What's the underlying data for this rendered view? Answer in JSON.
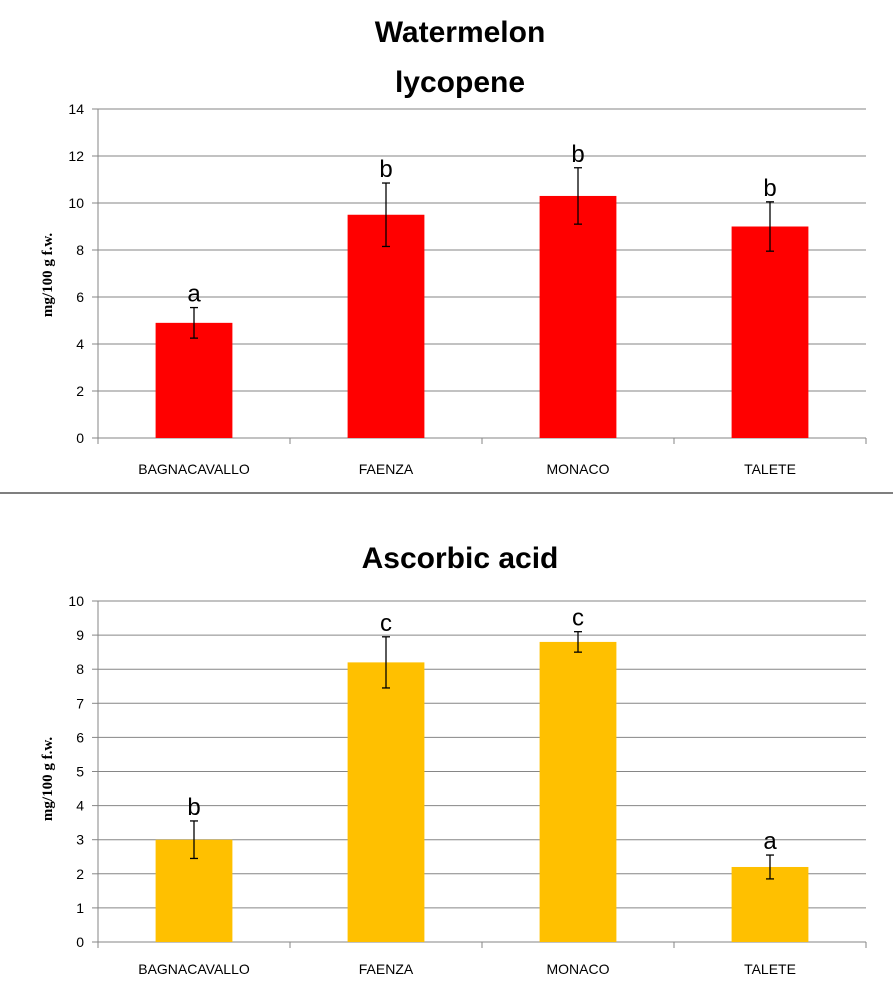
{
  "chart_data": [
    {
      "type": "bar",
      "title_lines": [
        "Watermelon",
        "lycopene"
      ],
      "ylabel": "mg/100 g f.w.",
      "categories": [
        "BAGNACAVALLO",
        "FAENZA",
        "MONACO",
        "TALETE"
      ],
      "values": [
        4.9,
        9.5,
        10.3,
        9.0
      ],
      "errors": [
        0.65,
        1.35,
        1.2,
        1.05
      ],
      "letters": [
        "a",
        "b",
        "b",
        "b"
      ],
      "ylim": [
        0,
        14
      ],
      "yticks": [
        0,
        2,
        4,
        6,
        8,
        10,
        12,
        14
      ],
      "color": "#ff0000",
      "grid": true
    },
    {
      "type": "bar",
      "title_lines": [
        "Ascorbic acid"
      ],
      "ylabel": "mg/100 g f.w.",
      "categories": [
        "BAGNACAVALLO",
        "FAENZA",
        "MONACO",
        "TALETE"
      ],
      "values": [
        3.0,
        8.2,
        8.8,
        2.2
      ],
      "errors": [
        0.55,
        0.75,
        0.3,
        0.35
      ],
      "letters": [
        "b",
        "c",
        "c",
        "a"
      ],
      "ylim": [
        0,
        10
      ],
      "yticks": [
        0,
        1,
        2,
        3,
        4,
        5,
        6,
        7,
        8,
        9,
        10
      ],
      "color": "#ffc000",
      "grid": true
    }
  ]
}
